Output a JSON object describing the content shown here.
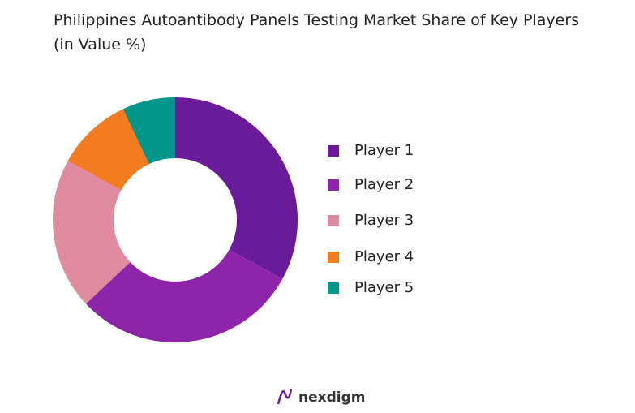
{
  "chart_data": {
    "type": "donut",
    "title": "Philippines Autoantibody Panels Testing Market Share of Key Players (in Value %)",
    "categories": [
      "Player 1",
      "Player 2",
      "Player 3",
      "Player 4",
      "Player 5"
    ],
    "values": [
      33,
      30,
      20,
      10,
      7
    ],
    "colors": [
      "#6a1b9a",
      "#8e24aa",
      "#e08aa0",
      "#f47c20",
      "#00968a"
    ],
    "legend": "right"
  },
  "footer": {
    "brand": "nexdigm"
  }
}
